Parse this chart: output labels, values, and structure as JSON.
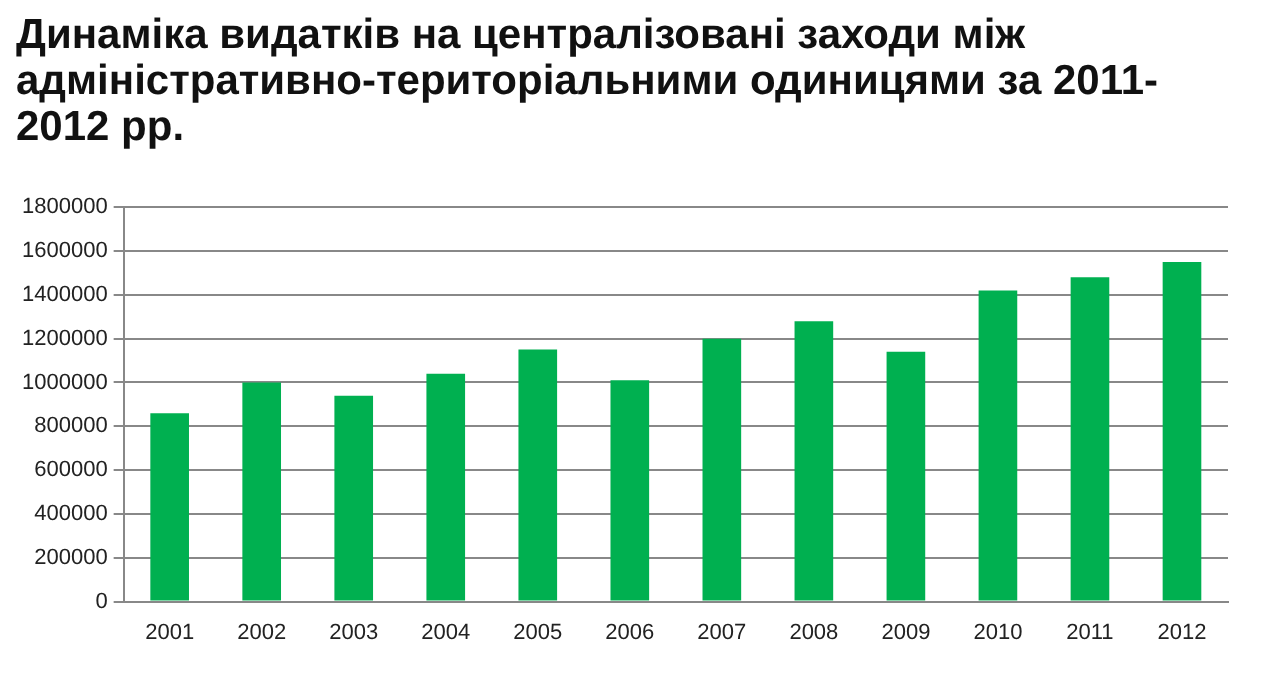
{
  "chart_data": {
    "type": "bar",
    "title": "Динаміка видатків на централізовані заходи між адміністративно-територіальними одиницями за 2011-2012 рр.",
    "categories": [
      "2001",
      "2002",
      "2003",
      "2004",
      "2005",
      "2006",
      "2007",
      "2008",
      "2009",
      "2010",
      "2011",
      "2012"
    ],
    "values": [
      860000,
      1000000,
      940000,
      1040000,
      1150000,
      1010000,
      1200000,
      1280000,
      1140000,
      1420000,
      1480000,
      1550000
    ],
    "color": "#00b050",
    "ylim": [
      0,
      1800000
    ],
    "yticks": [
      0,
      200000,
      400000,
      600000,
      800000,
      1000000,
      1200000,
      1400000,
      1600000,
      1800000
    ],
    "grid": "y"
  }
}
